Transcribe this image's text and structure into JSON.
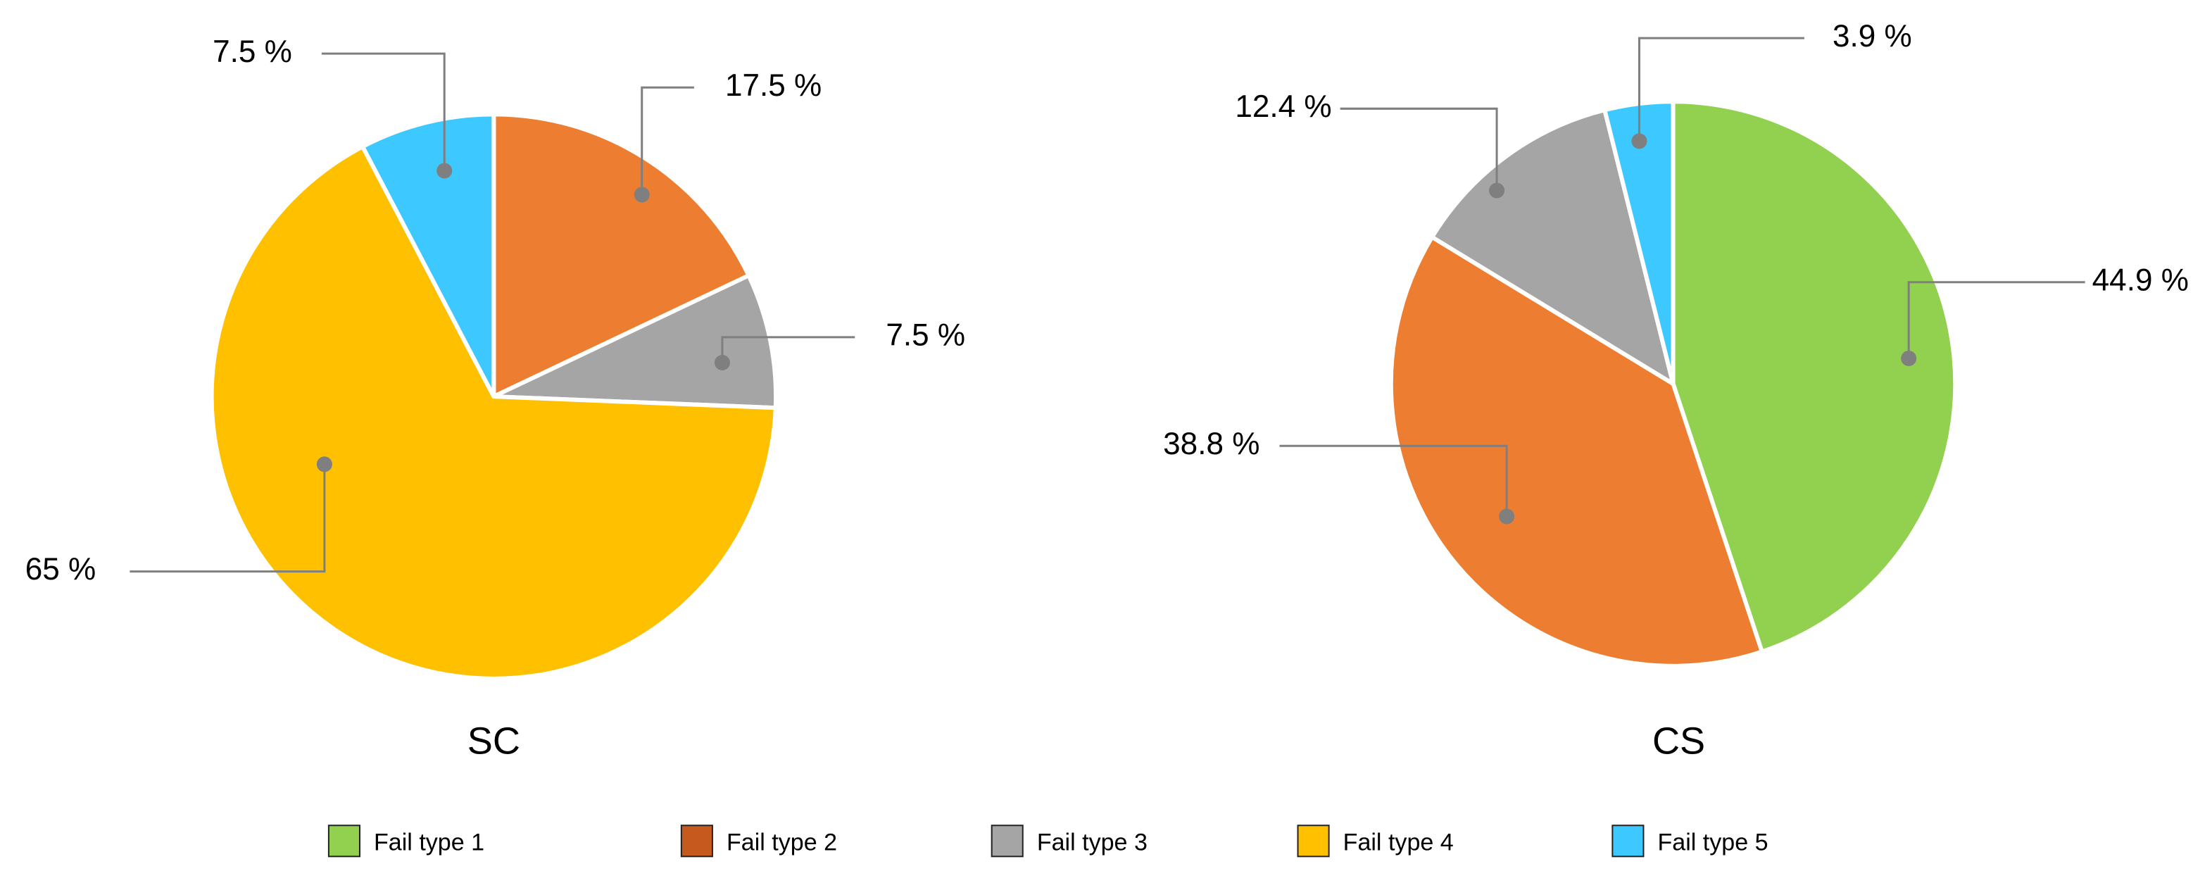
{
  "chart_data": [
    {
      "type": "pie",
      "title": "SC",
      "categories": [
        "Fail type 2",
        "Fail type 3",
        "Fail type 4",
        "Fail type 5"
      ],
      "values": [
        17.5,
        7.5,
        65,
        7.5
      ],
      "value_labels": [
        "17.5 %",
        "7.5 %",
        "65 %",
        "7.5 %"
      ],
      "colors": [
        "#ed7d31",
        "#a5a5a5",
        "#ffc000",
        "#3dc9ff"
      ]
    },
    {
      "type": "pie",
      "title": "CS",
      "categories": [
        "Fail type 1",
        "Fail type 2",
        "Fail type 3",
        "Fail type 5"
      ],
      "values": [
        44.9,
        38.8,
        12.4,
        3.9
      ],
      "value_labels": [
        "44.9 %",
        "38.8 %",
        "12.4 %",
        "3.9 %"
      ],
      "colors": [
        "#92d050",
        "#ed7d31",
        "#a5a5a5",
        "#3dc9ff"
      ]
    }
  ],
  "legend": [
    {
      "label": "Fail type 1",
      "color": "#92d050"
    },
    {
      "label": "Fail type 2",
      "color": "#c65a1e"
    },
    {
      "label": "Fail type 3",
      "color": "#a5a5a5"
    },
    {
      "label": "Fail type 4",
      "color": "#ffc000"
    },
    {
      "label": "Fail type 5",
      "color": "#3dc9ff"
    }
  ]
}
